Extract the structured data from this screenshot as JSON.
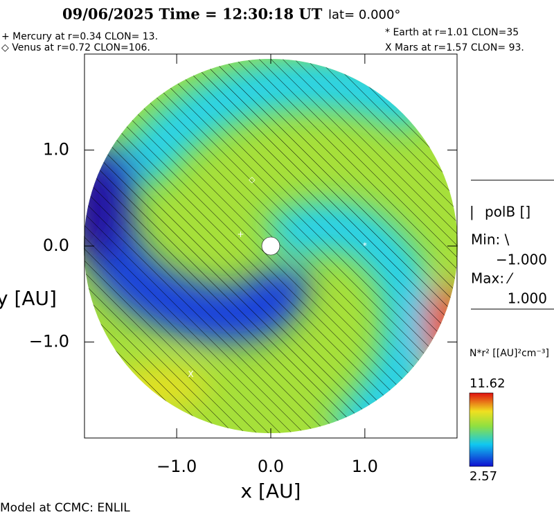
{
  "chart_data": {
    "type": "polar-field",
    "title": "09/06/2025 Time = 12:30:18 UT",
    "subtitle": "lat= 0.000°",
    "annotations_left": [
      "+ Mercury at r=0.34 CLON= 13.",
      "◇ Venus at r=0.72 CLON=106."
    ],
    "annotations_right": [
      "* Earth at  r=1.01 CLON=35",
      "X Mars at r=1.57 CLON= 93."
    ],
    "x_label": "x [AU]",
    "y_label": "y [AU]",
    "xlim": [
      -1.98,
      1.98
    ],
    "ylim": [
      -2.0,
      2.0
    ],
    "xticks": [
      {
        "value": -1,
        "label": "−1.0"
      },
      {
        "value": 0,
        "label": "0.0"
      },
      {
        "value": 1,
        "label": "1.0"
      }
    ],
    "yticks": [
      {
        "value": -1,
        "label": "−1.0"
      },
      {
        "value": 0,
        "label": "0.0"
      },
      {
        "value": 1,
        "label": "1.0"
      }
    ],
    "planets": [
      {
        "marker": "+",
        "x": -0.32,
        "y": 0.12
      },
      {
        "marker": "◇",
        "x": -0.2,
        "y": 0.69
      },
      {
        "marker": "*",
        "x": 1.0,
        "y": 0.0
      },
      {
        "marker": "X",
        "x": -0.85,
        "y": -1.34
      }
    ],
    "polarity": {
      "title": "polB []",
      "min_label": "Min: \\",
      "min": {
        "value": -1,
        "label": "−1.000"
      },
      "max_label": "Max: ⁄",
      "max": {
        "value": 1,
        "label": "1.000"
      }
    },
    "colorbar": {
      "label": "N*r² [[AU]²cm⁻³]",
      "range": [
        2.57,
        11.62
      ]
    },
    "footer": "Model at CCMC: ENLIL"
  }
}
